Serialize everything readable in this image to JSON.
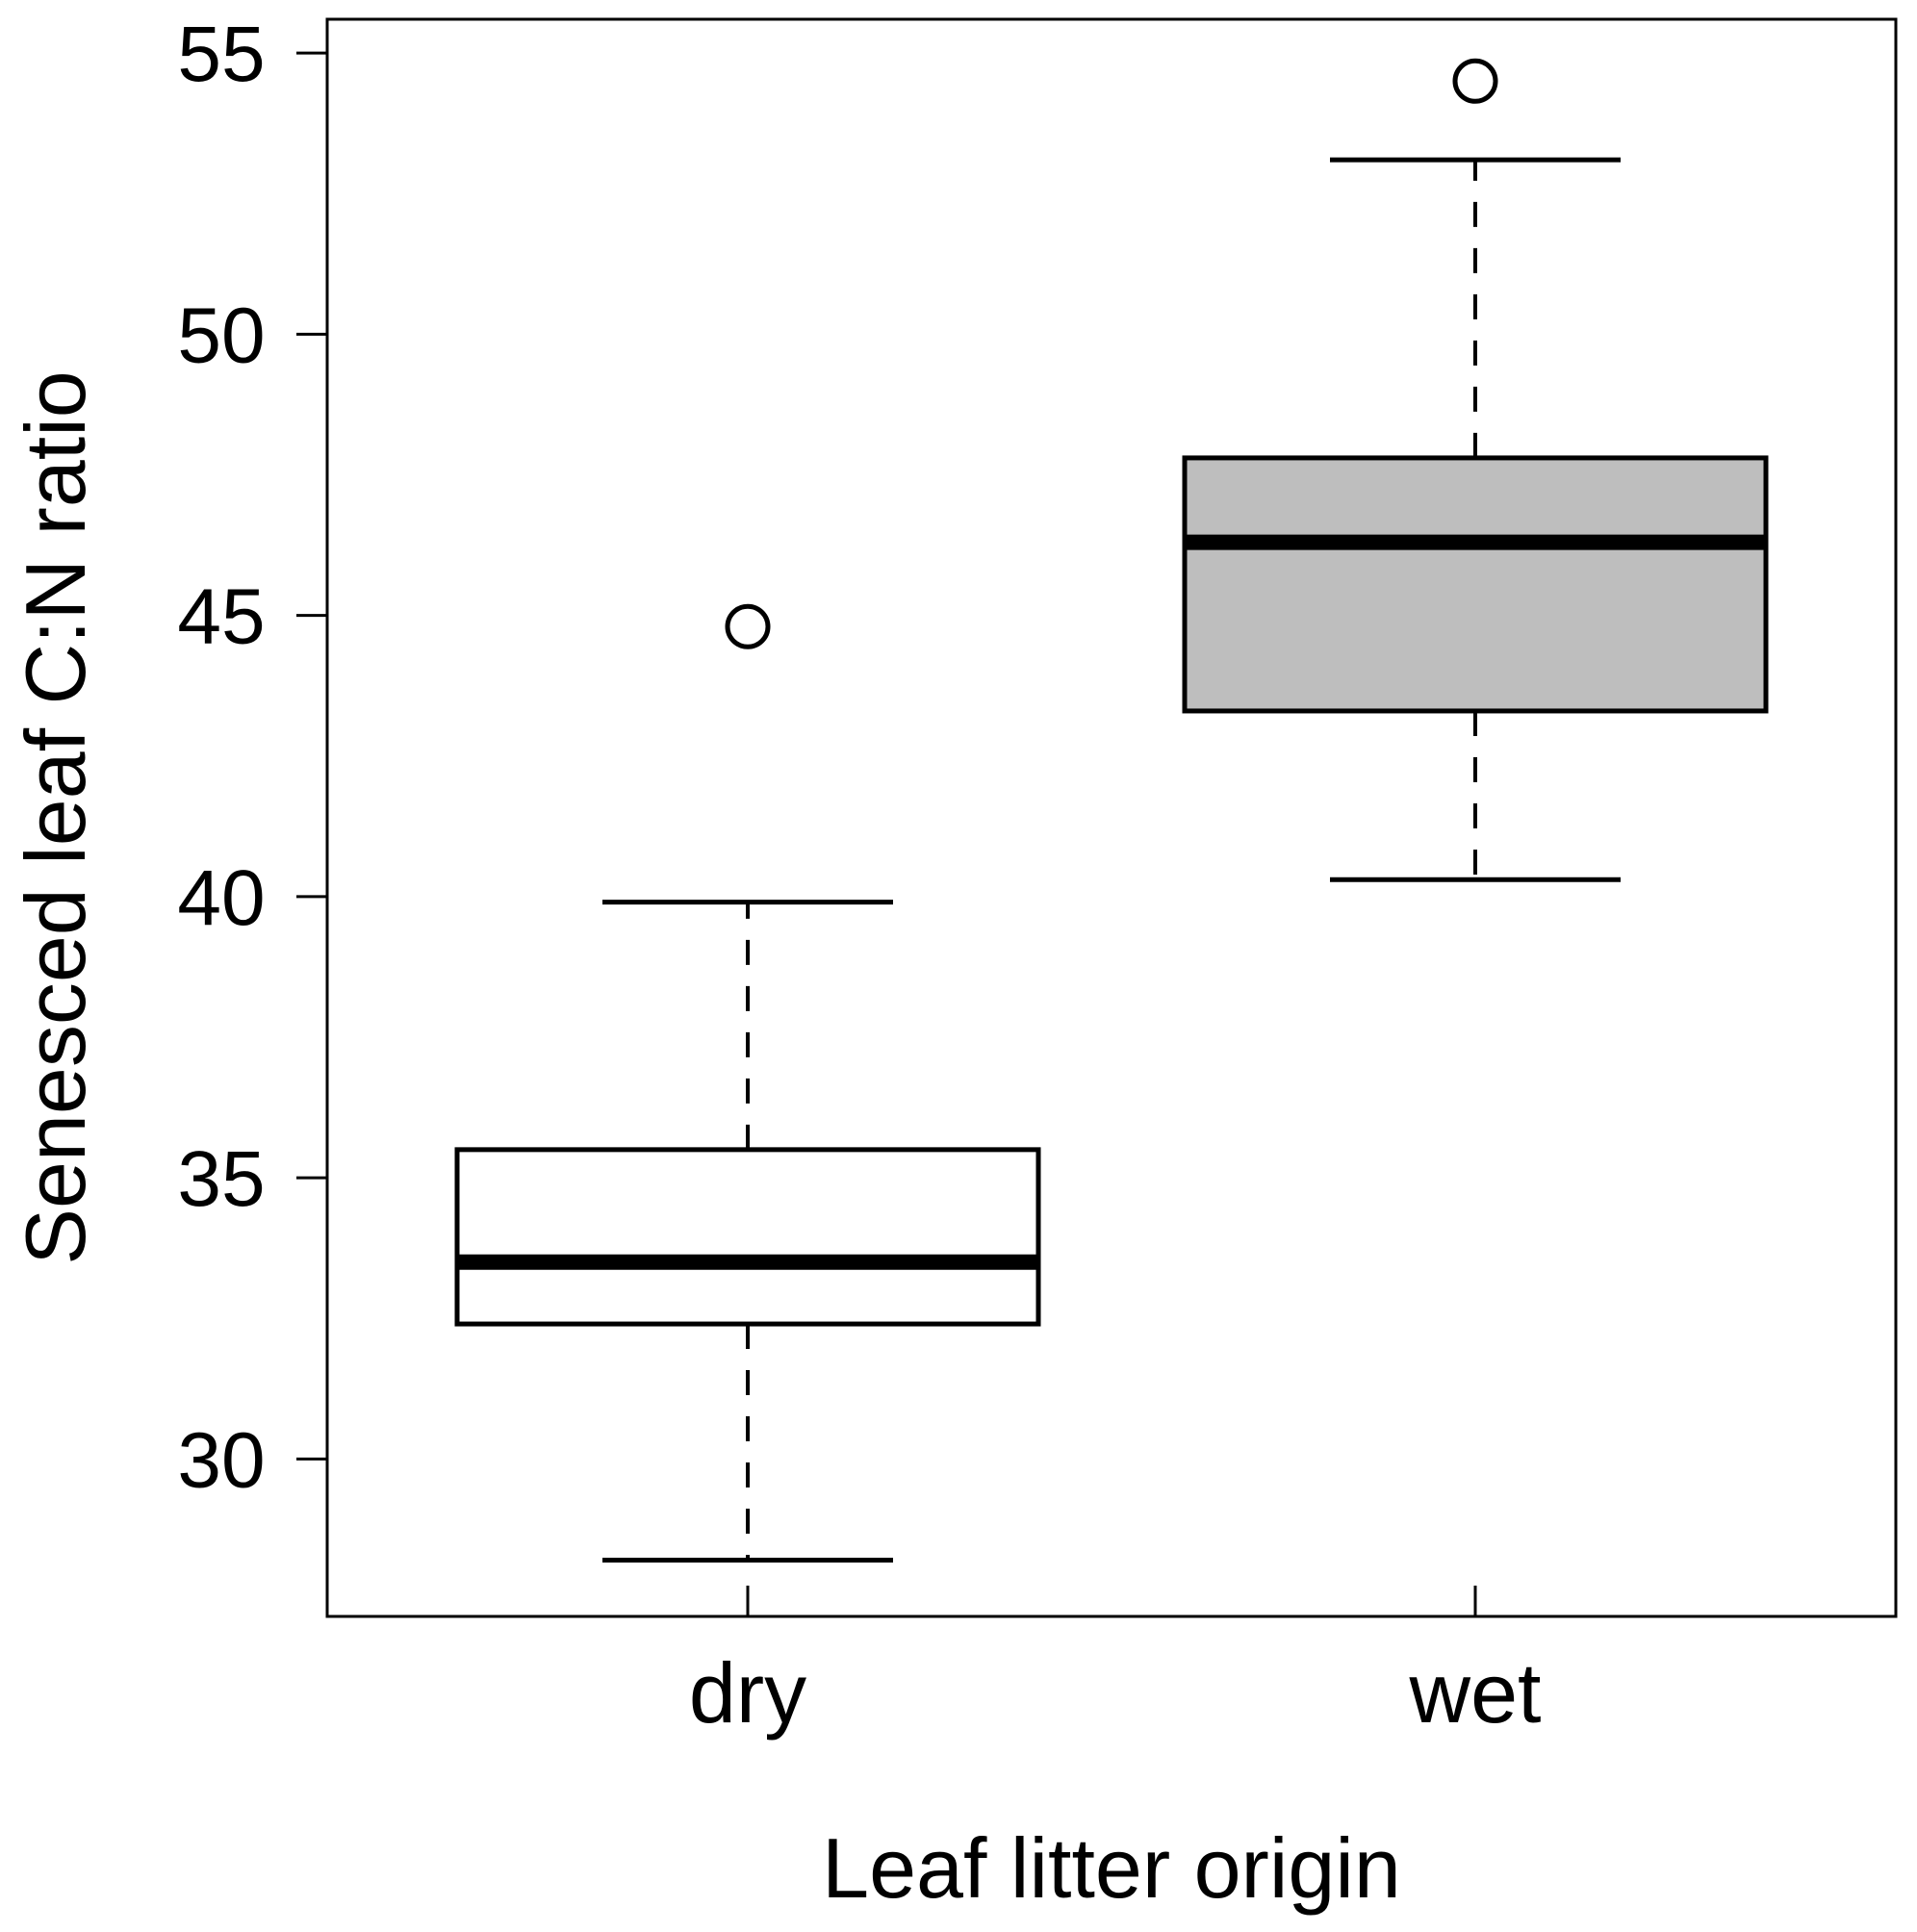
{
  "chart_data": {
    "type": "boxplot",
    "xlabel": "Leaf litter origin",
    "ylabel": "Senesced leaf C:N ratio",
    "ylim": [
      27.2,
      55.6
    ],
    "yticks": [
      30,
      35,
      40,
      45,
      50,
      55
    ],
    "grid": false,
    "legend": "none",
    "categories": [
      "dry",
      "wet"
    ],
    "boxes": [
      {
        "category": "dry",
        "whisker_low": 28.2,
        "q1": 32.4,
        "median": 33.5,
        "q3": 35.5,
        "whisker_high": 39.9,
        "outliers": [
          44.8
        ],
        "fill": "#ffffff"
      },
      {
        "category": "wet",
        "whisker_low": 40.3,
        "q1": 43.3,
        "median": 46.3,
        "q3": 47.8,
        "whisker_high": 53.1,
        "outliers": [
          54.5
        ],
        "fill": "#bebebe"
      }
    ]
  }
}
